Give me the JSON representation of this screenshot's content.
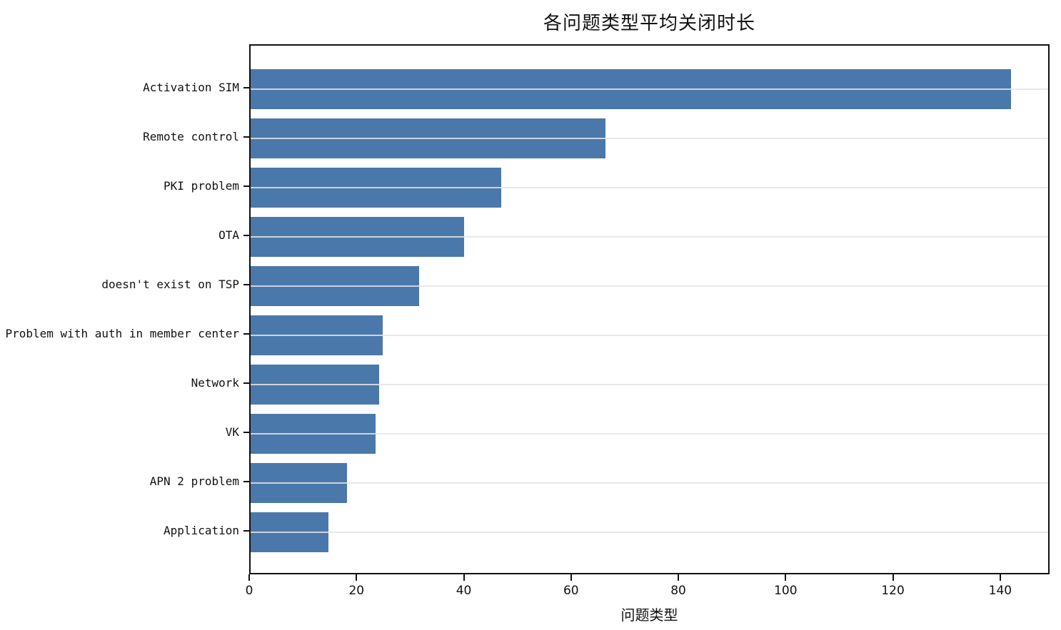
{
  "title": "各问题类型平均关闭时长",
  "x_axis_label": "问题类型",
  "colors": {
    "bar": "#4a78aa",
    "axis": "#111111",
    "gridline": "#e4e4e4",
    "background": "#ffffff"
  },
  "chart_data": {
    "type": "bar",
    "orientation": "horizontal",
    "title": "各问题类型平均关闭时长",
    "xlabel": "问题类型",
    "ylabel": "",
    "categories": [
      "Activation SIM",
      "Remote control",
      "PKI problem",
      "OTA",
      "doesn't exist on TSP",
      "Problem with auth in member center",
      "Network",
      "VK",
      "APN 2 problem",
      "Application"
    ],
    "values": [
      142.3,
      66.4,
      46.9,
      39.9,
      31.5,
      24.7,
      24.0,
      23.4,
      18.0,
      14.6
    ],
    "xlim": [
      0,
      149.2
    ],
    "xticks": [
      0,
      20,
      40,
      60,
      80,
      100,
      120,
      140
    ],
    "grid": "horizontal",
    "legend": "none"
  }
}
